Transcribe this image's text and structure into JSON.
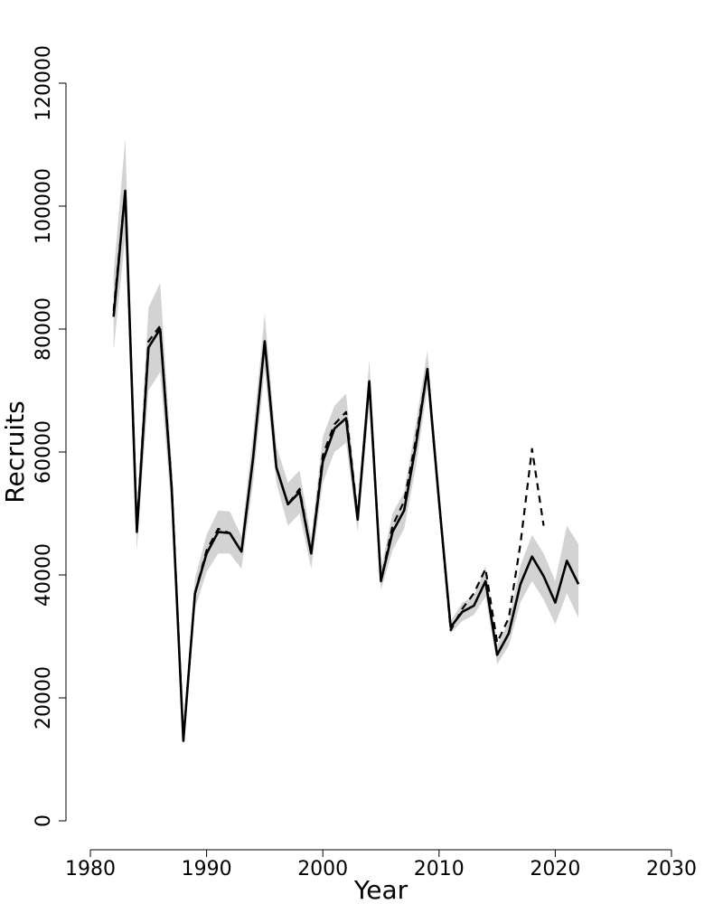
{
  "chart_data": {
    "type": "line",
    "xlabel": "Year",
    "ylabel": "Recruits",
    "xlim": [
      1980,
      2030
    ],
    "ylim": [
      0,
      120000
    ],
    "x_ticks": [
      1980,
      1990,
      2000,
      2010,
      2020,
      2030
    ],
    "y_ticks": [
      0,
      20000,
      40000,
      60000,
      80000,
      100000,
      120000
    ],
    "grid": false,
    "band_color": "#d3d3d3",
    "line_color": "#000000",
    "series": [
      {
        "style": "solid",
        "x": [
          1982,
          1983,
          1984,
          1985,
          1986,
          1987,
          1988,
          1989,
          1990,
          1991,
          1992,
          1993,
          1994,
          1995,
          1996,
          1997,
          1998,
          1999,
          2000,
          2001,
          2002,
          2003,
          2004,
          2005,
          2006,
          2007,
          2008,
          2009,
          2010,
          2011,
          2012,
          2013,
          2014,
          2015,
          2016,
          2017,
          2018,
          2019,
          2020,
          2021,
          2022
        ],
        "values": [
          82000,
          102500,
          47000,
          77000,
          80000,
          54000,
          13000,
          37000,
          43500,
          47000,
          46800,
          43800,
          59000,
          78000,
          57500,
          51500,
          53500,
          43500,
          58500,
          63800,
          65500,
          49000,
          71500,
          39000,
          47000,
          50500,
          61000,
          73500,
          52000,
          31500,
          34000,
          35000,
          39000,
          27000,
          30500,
          38500,
          43000,
          39800,
          35500,
          42300,
          38500
        ],
        "lower": [
          76500,
          95000,
          44000,
          70000,
          73000,
          50000,
          12500,
          34500,
          40500,
          43500,
          43500,
          41000,
          55000,
          73500,
          55000,
          48000,
          50000,
          41000,
          55000,
          60000,
          61500,
          47000,
          67500,
          37500,
          44000,
          47500,
          57500,
          70500,
          50000,
          30500,
          32500,
          33500,
          36500,
          25500,
          28500,
          35500,
          39000,
          36000,
          32000,
          37000,
          33000
        ],
        "upper": [
          89000,
          111000,
          50000,
          83500,
          87500,
          58000,
          13500,
          39500,
          46500,
          50500,
          50300,
          46300,
          63000,
          82500,
          61000,
          55000,
          57000,
          46000,
          62500,
          67500,
          69500,
          51000,
          75000,
          41000,
          50000,
          53500,
          64500,
          76500,
          54000,
          32500,
          35500,
          36500,
          41500,
          28500,
          32500,
          41500,
          46500,
          43500,
          39000,
          48000,
          45000
        ]
      },
      {
        "style": "dashed",
        "x": [
          1982,
          1983,
          1984,
          1985,
          1986,
          1987,
          1988,
          1989,
          1990,
          1991,
          1992,
          1993,
          1994,
          1995,
          1996,
          1997,
          1998,
          1999,
          2000,
          2001,
          2002,
          2003,
          2004,
          2005,
          2006,
          2007,
          2008,
          2009,
          2010,
          2011,
          2012,
          2013,
          2014,
          2015,
          2016,
          2017,
          2018,
          2019
        ],
        "values": [
          83000,
          102500,
          47500,
          78000,
          80500,
          54500,
          13200,
          37000,
          44000,
          47500,
          46800,
          43800,
          59000,
          78000,
          57500,
          51500,
          54000,
          43500,
          59500,
          64500,
          66500,
          49500,
          71500,
          39000,
          48000,
          52000,
          62000,
          73500,
          52000,
          31000,
          34500,
          37000,
          41000,
          29000,
          33000,
          45000,
          60500,
          48000
        ]
      }
    ]
  }
}
